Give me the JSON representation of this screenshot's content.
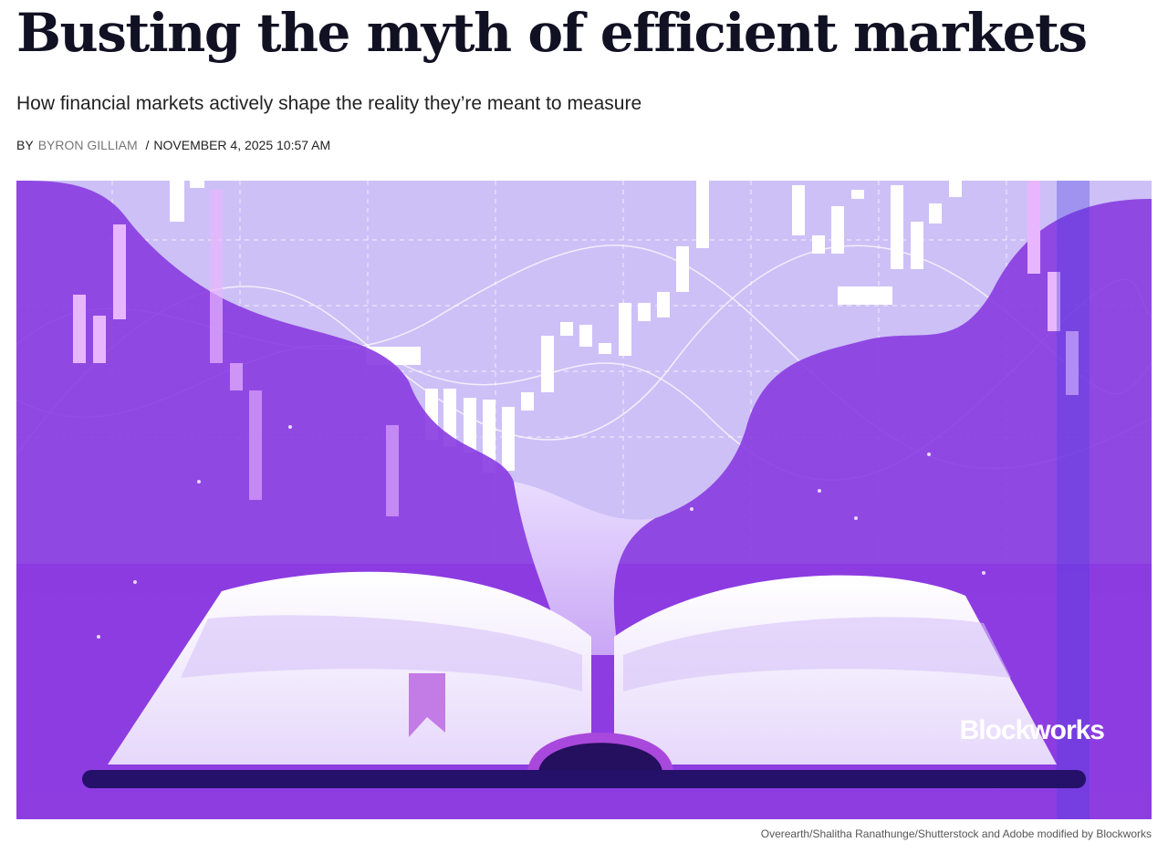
{
  "header": {
    "title": "Busting the myth of efficient markets",
    "subtitle": "How financial markets actively shape the reality they’re meant to measure"
  },
  "byline": {
    "prefix": "BY",
    "author": "BYRON GILLIAM",
    "separator": "/",
    "date": "NOVEMBER 4, 2025 10:57 AM"
  },
  "image": {
    "watermark": "Blockworks",
    "caption": "Overearth/Shalitha Ranathunge/Shutterstock and Adobe modified by Blockworks"
  }
}
